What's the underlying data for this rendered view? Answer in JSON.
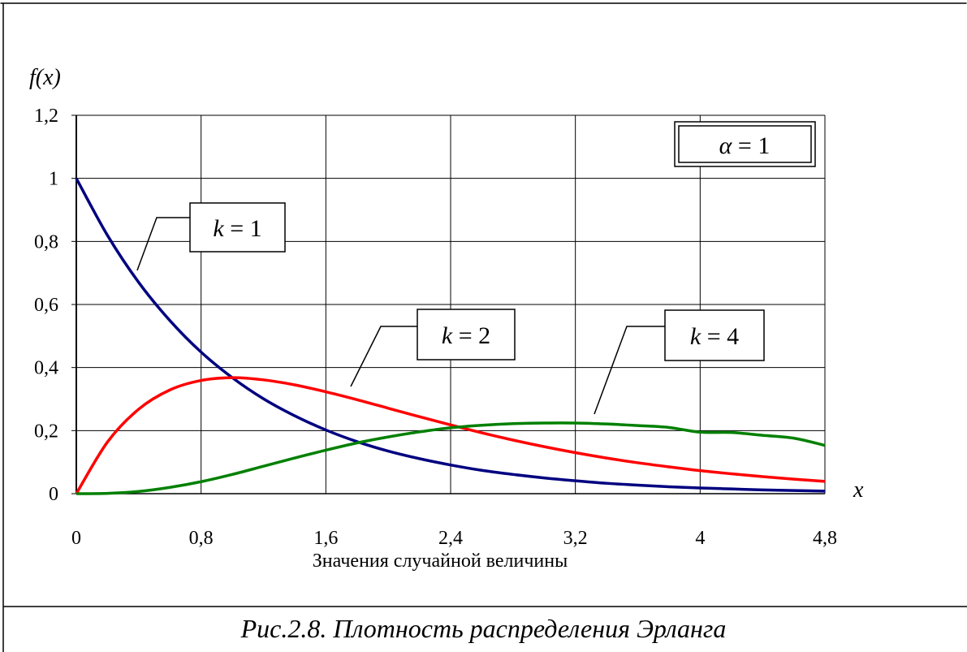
{
  "caption": "Рис.2.8. Плотность распределения Эрланга",
  "chart_data": {
    "type": "line",
    "title": "",
    "xlabel": "Значения случайной величины",
    "ylabel": "f(x)",
    "x_axis_symbol": "x",
    "xlim": [
      0,
      4.8
    ],
    "ylim": [
      0,
      1.2
    ],
    "x_ticks": [
      0,
      0.8,
      1.6,
      2.4,
      3.2,
      4,
      4.8
    ],
    "x_tick_labels": [
      "0",
      "0,8",
      "1,6",
      "2,4",
      "3,2",
      "4",
      "4,8"
    ],
    "y_ticks": [
      0,
      0.2,
      0.4,
      0.6,
      0.8,
      1,
      1.2
    ],
    "y_tick_labels": [
      "0",
      "0,2",
      "0,4",
      "0,6",
      "0,8",
      "1",
      "1,2"
    ],
    "grid": true,
    "parameter_box": {
      "symbol": "α",
      "text": "= 1"
    },
    "x": [
      0,
      0.2,
      0.4,
      0.6,
      0.8,
      1.0,
      1.2,
      1.4,
      1.6,
      1.8,
      2.0,
      2.2,
      2.4,
      2.6,
      2.8,
      3.0,
      3.2,
      3.4,
      3.6,
      3.8,
      4.0,
      4.2,
      4.4,
      4.6,
      4.8
    ],
    "series": [
      {
        "name": "k = 1",
        "color": "#000080",
        "values": [
          1,
          0.819,
          0.67,
          0.549,
          0.449,
          0.368,
          0.301,
          0.247,
          0.202,
          0.165,
          0.135,
          0.111,
          0.091,
          0.074,
          0.061,
          0.05,
          0.041,
          0.033,
          0.027,
          0.022,
          0.018,
          0.015,
          0.012,
          0.01,
          0.008
        ]
      },
      {
        "name": "k = 2",
        "color": "#ff0000",
        "values": [
          0,
          0.164,
          0.268,
          0.329,
          0.359,
          0.368,
          0.361,
          0.345,
          0.323,
          0.298,
          0.271,
          0.244,
          0.218,
          0.193,
          0.17,
          0.149,
          0.13,
          0.113,
          0.098,
          0.085,
          0.073,
          0.063,
          0.054,
          0.046,
          0.039
        ]
      },
      {
        "name": "k = 4",
        "color": "#008000",
        "values": [
          0,
          0.001,
          0.007,
          0.02,
          0.038,
          0.061,
          0.087,
          0.113,
          0.138,
          0.161,
          0.18,
          0.196,
          0.209,
          0.217,
          0.222,
          0.224,
          0.224,
          0.221,
          0.216,
          0.21,
          0.195,
          0.194,
          0.185,
          0.176,
          0.153
        ]
      }
    ],
    "labels": [
      {
        "prefix": "k",
        "text": "= 1"
      },
      {
        "prefix": "k",
        "text": "= 2"
      },
      {
        "prefix": "k",
        "text": "= 4"
      }
    ]
  }
}
